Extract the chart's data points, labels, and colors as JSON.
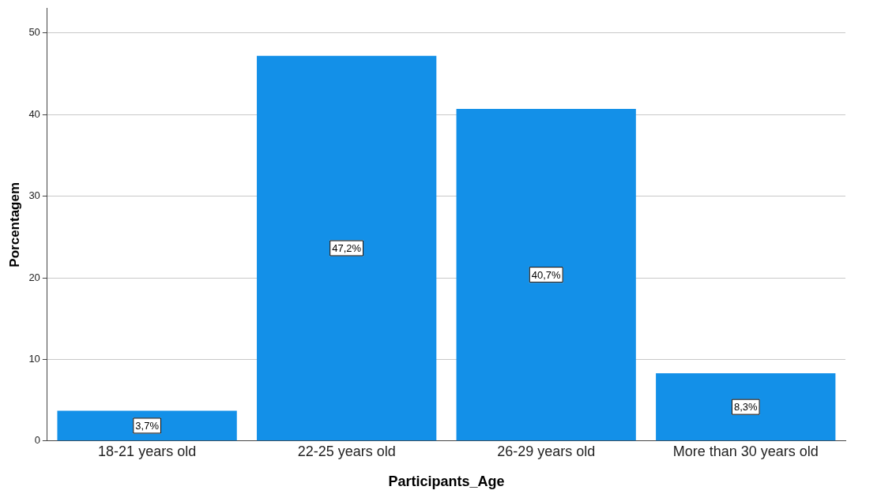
{
  "chart_data": {
    "type": "bar",
    "xlabel": "Participants_Age",
    "ylabel": "Porcentagem",
    "categories": [
      "18-21 years old",
      "22-25 years old",
      "26-29 years old",
      "More than 30 years old"
    ],
    "values": [
      3.7,
      47.2,
      40.7,
      8.3
    ],
    "value_labels": [
      "3,7%",
      "47,2%",
      "40,7%",
      "8,3%"
    ],
    "color": "#1390e8",
    "ylim": [
      0,
      53
    ],
    "yticks": [
      0,
      10,
      20,
      30,
      40,
      50
    ],
    "grid": "y",
    "legend": false
  }
}
